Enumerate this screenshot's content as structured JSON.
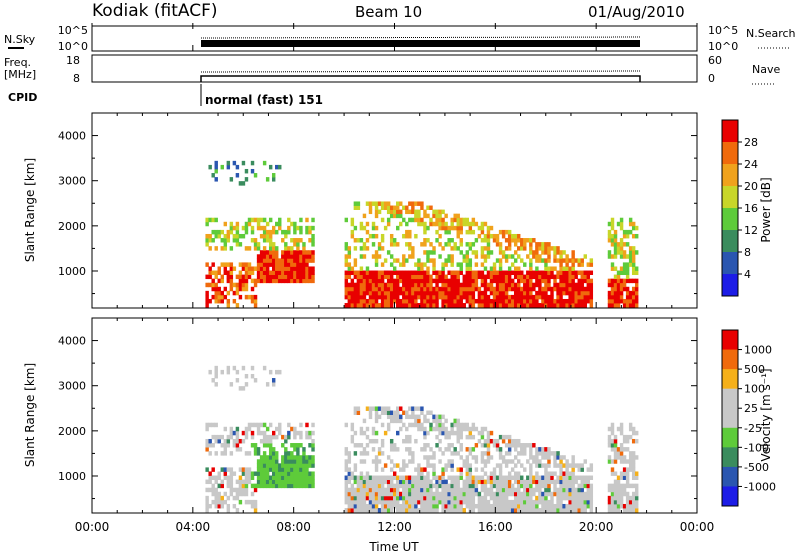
{
  "header": {
    "station": "Kodiak (fitACF)",
    "beam": "Beam 10",
    "date": "01/Aug/2010"
  },
  "top_panels": {
    "nsky_label": "N.Sky",
    "nsky_ticks": [
      "10^5",
      "10^0"
    ],
    "nsearch_label": "N.Search",
    "nsearch_ticks": [
      "10^5",
      "10^0"
    ],
    "freq_label_1": "Freq.",
    "freq_label_2": "[MHz]",
    "freq_ticks": [
      "18",
      "8"
    ],
    "nave_label": "Nave",
    "nave_ticks": [
      "60",
      "0"
    ],
    "cpid_label": "CPID",
    "cpid_text": "normal (fast) 151"
  },
  "colors": {
    "power": [
      "#1c1ce6",
      "#2a56b0",
      "#3a8c5e",
      "#5ecb3a",
      "#c8d629",
      "#f0a21c",
      "#f06a0c",
      "#e80000"
    ],
    "velocity": [
      "#e80000",
      "#f06a0c",
      "#f5b01a",
      "#c8c8c8",
      "#c8c8c8",
      "#5ecb3a",
      "#3a8c5e",
      "#2a56b0",
      "#1c1ce6"
    ]
  },
  "chart_data": [
    {
      "type": "heatmap",
      "title": "Power",
      "ylabel": "Slant Range [km]",
      "xlabel": "",
      "x_range": [
        0,
        24
      ],
      "y_range": [
        180,
        4500
      ],
      "y_ticks": [
        "1000",
        "2000",
        "3000",
        "4000"
      ],
      "colorbar_label": "Power [dB]",
      "colorbar_ticks": [
        "4",
        "8",
        "12",
        "16",
        "20",
        "24",
        "28"
      ],
      "data_extent_utc": [
        "04:30",
        "21:40"
      ],
      "features": [
        {
          "desc": "strong echo",
          "t": [
            6.5,
            8.8
          ],
          "range": [
            700,
            1500
          ],
          "level": "high"
        },
        {
          "desc": "strong echo",
          "t": [
            10.0,
            19.8
          ],
          "range": [
            250,
            1000
          ],
          "level": "high"
        },
        {
          "desc": "descending band",
          "t": [
            12.0,
            20.2
          ],
          "range": [
            900,
            2500
          ],
          "level": "medium"
        },
        {
          "desc": "strong echo",
          "t": [
            20.5,
            21.7
          ],
          "range": [
            250,
            800
          ],
          "level": "high"
        }
      ]
    },
    {
      "type": "heatmap",
      "title": "Velocity",
      "ylabel": "Slant Range [km]",
      "xlabel": "Time UT",
      "x_range": [
        0,
        24
      ],
      "y_range": [
        180,
        4500
      ],
      "x_ticks": [
        "00:00",
        "04:00",
        "08:00",
        "12:00",
        "16:00",
        "20:00",
        "00:00"
      ],
      "y_ticks": [
        "1000",
        "2000",
        "3000",
        "4000"
      ],
      "colorbar_label": "Velocity [m s⁻¹]",
      "colorbar_ticks": [
        "1000",
        "500",
        "100",
        "25",
        "-25",
        "-100",
        "-500",
        "-1000"
      ],
      "data_extent_utc": [
        "04:30",
        "21:40"
      ]
    }
  ]
}
